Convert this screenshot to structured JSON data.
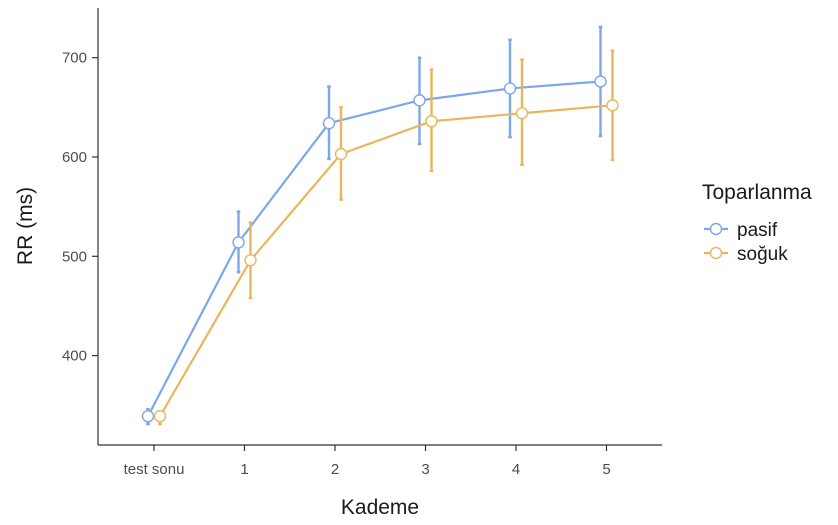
{
  "chart_data": {
    "type": "line",
    "xlabel": "Kademe",
    "ylabel": "RR (ms)",
    "categories": [
      "test sonu",
      "1",
      "2",
      "3",
      "4",
      "5"
    ],
    "ylim": [
      310,
      750
    ],
    "yticks": [
      400,
      500,
      600,
      700
    ],
    "grid": false,
    "legend": {
      "title": "Toparlanma",
      "placement": "right"
    },
    "series": [
      {
        "name": "pasif",
        "color": "#7da7e8",
        "values": [
          339,
          514,
          634,
          657,
          669,
          676
        ],
        "lower": [
          331,
          484,
          598,
          613,
          620,
          621
        ],
        "upper": [
          346,
          545,
          671,
          700,
          718,
          731
        ]
      },
      {
        "name": "soğuk",
        "color": "#e9b65c",
        "values": [
          339,
          496,
          603,
          636,
          644,
          652
        ],
        "lower": [
          331,
          458,
          557,
          586,
          592,
          597
        ],
        "upper": [
          343,
          534,
          650,
          688,
          698,
          707
        ]
      }
    ]
  }
}
